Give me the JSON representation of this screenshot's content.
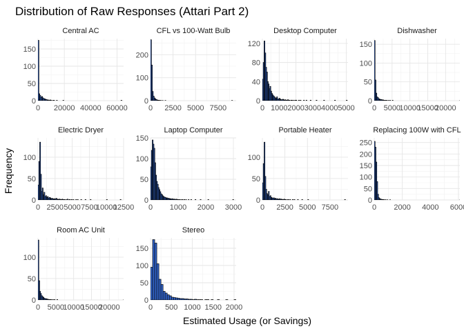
{
  "chart_data": {
    "type": "histogram",
    "title": "Distribution of Raw Responses (Attari Part 2)",
    "xlabel": "Estimated Usage (or Savings)",
    "ylabel": "Frequency",
    "grid": true,
    "bar_fill": "#3366cc",
    "bar_outline": "#000000",
    "panels": [
      {
        "name": "Central AC",
        "xlim": [
          0,
          65000
        ],
        "ylim": [
          0,
          180
        ],
        "x_ticks": [
          0,
          20000,
          40000,
          60000
        ],
        "x_tick_labels": [
          "0",
          "20000",
          "40000",
          "60000"
        ],
        "y_ticks": [
          0,
          50,
          100,
          150
        ],
        "bin_width": 700,
        "counts": [
          175,
          20,
          15,
          10,
          12,
          8,
          6,
          5,
          4,
          3,
          2,
          2,
          1,
          2,
          1,
          0,
          1,
          1,
          0,
          0,
          1,
          0,
          0,
          0,
          0,
          0,
          0,
          1,
          0,
          0,
          0,
          0,
          0,
          0,
          0,
          0,
          0,
          0,
          0,
          0,
          0,
          0,
          0,
          0,
          0,
          0,
          0,
          0,
          0,
          0,
          0,
          0,
          0,
          0,
          0,
          0,
          0,
          0,
          0,
          0,
          0,
          0,
          0,
          0,
          0,
          0,
          0,
          0,
          0,
          0,
          0,
          0,
          0,
          0,
          0,
          0,
          0,
          0,
          0,
          0,
          0,
          0,
          0,
          0,
          0,
          0,
          0,
          0,
          0,
          0,
          1
        ]
      },
      {
        "name": "CFL vs 100-Watt Bulb",
        "xlim": [
          0,
          9500
        ],
        "ylim": [
          0,
          270
        ],
        "x_ticks": [
          0,
          2500,
          5000,
          7500
        ],
        "x_tick_labels": [
          "0",
          "2500",
          "5000",
          "7500"
        ],
        "y_ticks": [
          0,
          100,
          200
        ],
        "bin_width": 100,
        "counts": [
          265,
          155,
          40,
          20,
          12,
          8,
          5,
          3,
          2,
          2,
          1,
          1,
          0,
          1,
          0,
          0,
          1,
          0,
          0,
          0,
          0,
          0,
          0,
          0,
          0,
          0,
          0,
          0,
          0,
          0,
          0,
          0,
          0,
          0,
          0,
          0,
          0,
          0,
          0,
          0,
          0,
          0,
          0,
          0,
          0,
          0,
          0,
          0,
          0,
          0,
          0,
          0,
          0,
          0,
          0,
          0,
          0,
          0,
          0,
          0,
          0,
          0,
          0,
          0,
          0,
          0,
          0,
          0,
          0,
          0,
          0,
          0,
          0,
          0,
          0,
          0,
          0,
          0,
          0,
          0,
          0,
          0,
          0,
          0,
          0,
          0,
          0,
          0,
          0,
          0,
          1
        ]
      },
      {
        "name": "Desktop Computer",
        "xlim": [
          0,
          5100
        ],
        "ylim": [
          0,
          130
        ],
        "x_ticks": [
          0,
          1000,
          2000,
          3000,
          4000,
          5000
        ],
        "x_tick_labels": [
          "0",
          "1000",
          "2000",
          "3000",
          "4000",
          "5000"
        ],
        "y_ticks": [
          0,
          40,
          80,
          120
        ],
        "bin_width": 50,
        "counts": [
          45,
          80,
          125,
          100,
          70,
          60,
          40,
          35,
          25,
          30,
          20,
          15,
          12,
          10,
          8,
          6,
          5,
          8,
          4,
          3,
          5,
          3,
          2,
          2,
          3,
          2,
          1,
          2,
          1,
          1,
          2,
          1,
          1,
          0,
          1,
          1,
          0,
          1,
          0,
          1,
          1,
          0,
          0,
          1,
          0,
          1,
          0,
          0,
          0,
          1,
          0,
          0,
          1,
          0,
          0,
          0,
          0,
          1,
          0,
          0,
          0,
          0,
          0,
          0,
          1,
          0,
          0,
          0,
          0,
          0,
          0,
          0,
          0,
          1,
          0,
          0,
          0,
          0,
          0,
          0,
          0,
          0,
          0,
          0,
          0,
          0,
          1,
          0,
          0,
          0,
          0,
          0,
          0,
          0,
          0,
          0,
          0,
          0,
          0,
          0,
          1
        ]
      },
      {
        "name": "Dishwasher",
        "xlim": [
          0,
          24000
        ],
        "ylim": [
          0,
          165
        ],
        "x_ticks": [
          0,
          5000,
          10000,
          15000,
          20000
        ],
        "x_tick_labels": [
          "0",
          "5000",
          "10000",
          "15000",
          "20000"
        ],
        "y_ticks": [
          0,
          50,
          100,
          150
        ],
        "bin_width": 240,
        "counts": [
          160,
          55,
          20,
          10,
          8,
          5,
          4,
          3,
          3,
          2,
          2,
          1,
          1,
          1,
          1,
          0,
          1,
          0,
          1,
          0,
          0,
          1,
          0,
          0,
          0,
          0,
          0,
          0,
          0,
          0,
          0,
          0,
          0,
          0,
          0,
          0,
          0,
          0,
          0,
          0,
          0,
          0,
          0,
          0,
          0,
          0,
          0,
          0,
          0,
          0,
          0,
          0,
          0,
          0,
          0,
          0,
          0,
          0,
          0,
          0,
          0,
          0,
          0,
          0,
          0,
          0,
          0,
          0,
          0,
          0,
          0,
          0,
          0,
          0,
          0,
          0,
          0,
          0,
          0,
          0,
          0,
          0,
          0,
          0,
          0,
          0,
          0,
          0,
          0,
          0,
          0,
          0,
          0,
          0,
          0,
          0,
          0,
          0,
          0,
          0,
          1
        ]
      },
      {
        "name": "Electric Dryer",
        "xlim": [
          0,
          12500
        ],
        "ylim": [
          0,
          145
        ],
        "x_ticks": [
          0,
          2500,
          5000,
          7500,
          10000,
          12500
        ],
        "x_tick_labels": [
          "0",
          "2500",
          "5000",
          "7500",
          "10000",
          "12500"
        ],
        "y_ticks": [
          0,
          50,
          100
        ],
        "bin_width": 125,
        "counts": [
          35,
          90,
          135,
          60,
          20,
          28,
          12,
          18,
          8,
          10,
          6,
          8,
          4,
          6,
          5,
          3,
          4,
          3,
          2,
          3,
          2,
          4,
          2,
          1,
          2,
          2,
          1,
          1,
          2,
          1,
          1,
          1,
          0,
          1,
          2,
          0,
          1,
          1,
          0,
          1,
          0,
          1,
          0,
          0,
          1,
          0,
          1,
          0,
          0,
          0,
          1,
          0,
          0,
          0,
          0,
          1,
          0,
          0,
          0,
          0,
          0,
          1,
          0,
          0,
          0,
          0,
          0,
          0,
          0,
          0,
          0,
          0,
          0,
          0,
          0,
          0,
          0,
          0,
          0,
          0,
          1,
          0,
          0,
          0,
          0,
          0,
          0,
          0,
          0,
          0,
          0,
          0,
          0,
          0,
          0,
          0,
          1
        ]
      },
      {
        "name": "Laptop Computer",
        "xlim": [
          0,
          3100
        ],
        "ylim": [
          0,
          150
        ],
        "x_ticks": [
          0,
          1000,
          2000,
          3000
        ],
        "x_tick_labels": [
          "0",
          "1000",
          "2000",
          "3000"
        ],
        "y_ticks": [
          0,
          50,
          100,
          150
        ],
        "bin_width": 31,
        "counts": [
          80,
          120,
          145,
          135,
          125,
          90,
          60,
          45,
          38,
          30,
          25,
          20,
          15,
          13,
          10,
          8,
          7,
          6,
          5,
          5,
          4,
          4,
          3,
          3,
          2,
          3,
          2,
          2,
          2,
          1,
          2,
          1,
          1,
          1,
          1,
          0,
          1,
          1,
          0,
          1,
          0,
          1,
          0,
          0,
          1,
          0,
          0,
          1,
          0,
          0,
          0,
          0,
          1,
          0,
          0,
          0,
          0,
          0,
          1,
          0,
          0,
          0,
          0,
          0,
          0,
          0,
          0,
          1,
          0,
          0,
          0,
          0,
          0,
          0,
          0,
          0,
          0,
          0,
          0,
          0,
          0,
          0,
          0,
          0,
          0,
          0,
          0,
          0,
          0,
          0,
          0,
          0,
          0,
          0,
          0,
          0,
          1
        ]
      },
      {
        "name": "Portable Heater",
        "xlim": [
          0,
          9500
        ],
        "ylim": [
          0,
          145
        ],
        "x_ticks": [
          0,
          2500,
          5000,
          7500
        ],
        "x_tick_labels": [
          "0",
          "2500",
          "5000",
          "7500"
        ],
        "y_ticks": [
          0,
          50,
          100
        ],
        "bin_width": 95,
        "counts": [
          40,
          85,
          135,
          55,
          25,
          15,
          12,
          20,
          8,
          10,
          6,
          5,
          4,
          5,
          3,
          4,
          2,
          3,
          2,
          2,
          3,
          1,
          2,
          1,
          1,
          2,
          1,
          1,
          0,
          1,
          1,
          0,
          1,
          0,
          0,
          1,
          0,
          1,
          0,
          0,
          0,
          1,
          0,
          0,
          0,
          0,
          1,
          0,
          0,
          0,
          0,
          0,
          0,
          1,
          0,
          0,
          0,
          0,
          0,
          0,
          0,
          0,
          0,
          0,
          0,
          0,
          0,
          0,
          0,
          0,
          0,
          0,
          0,
          0,
          0,
          0,
          0,
          0,
          0,
          0,
          0,
          0,
          0,
          0,
          0,
          0,
          0,
          0,
          0,
          0,
          0,
          0,
          0,
          0,
          0,
          0,
          1
        ]
      },
      {
        "name": "Replacing 100W with CFL",
        "xlim": [
          0,
          6100
        ],
        "ylim": [
          0,
          270
        ],
        "x_ticks": [
          0,
          2000,
          4000,
          6000
        ],
        "x_tick_labels": [
          "0",
          "2000",
          "4000",
          "6000"
        ],
        "y_ticks": [
          0,
          50,
          100,
          150,
          200,
          250
        ],
        "bin_width": 61,
        "counts": [
          255,
          230,
          165,
          80,
          25,
          10,
          6,
          4,
          3,
          2,
          2,
          1,
          1,
          1,
          0,
          1,
          0,
          0,
          1,
          0,
          0,
          0,
          0,
          0,
          0,
          0,
          0,
          0,
          0,
          0,
          0,
          0,
          0,
          0,
          0,
          0,
          0,
          0,
          0,
          0,
          0,
          0,
          0,
          0,
          0,
          0,
          0,
          0,
          0,
          0,
          0,
          0,
          0,
          0,
          0,
          0,
          0,
          0,
          0,
          0,
          0,
          0,
          0,
          0,
          0,
          0,
          0,
          0,
          0,
          0,
          0,
          0,
          0,
          0,
          0,
          0,
          0,
          0,
          0,
          0,
          0,
          0,
          0,
          0,
          0,
          0,
          0,
          0,
          0,
          0,
          0,
          0,
          0,
          0,
          0,
          0,
          0,
          0,
          0,
          0,
          1
        ]
      },
      {
        "name": "Room AC Unit",
        "xlim": [
          0,
          24000
        ],
        "ylim": [
          0,
          145
        ],
        "x_ticks": [
          0,
          5000,
          10000,
          15000,
          20000
        ],
        "x_tick_labels": [
          "0",
          "5000",
          "10000",
          "15000",
          "20000"
        ],
        "y_ticks": [
          0,
          50,
          100
        ],
        "bin_width": 240,
        "counts": [
          140,
          45,
          20,
          15,
          10,
          8,
          6,
          4,
          3,
          3,
          2,
          2,
          1,
          1,
          1,
          1,
          0,
          1,
          0,
          1,
          0,
          0,
          1,
          0,
          0,
          0,
          0,
          0,
          0,
          0,
          0,
          0,
          0,
          0,
          0,
          0,
          0,
          0,
          0,
          0,
          0,
          0,
          0,
          0,
          0,
          0,
          0,
          0,
          0,
          0,
          0,
          0,
          0,
          0,
          0,
          0,
          0,
          0,
          0,
          0,
          0,
          0,
          0,
          0,
          0,
          0,
          0,
          0,
          0,
          0,
          0,
          0,
          0,
          0,
          0,
          0,
          0,
          0,
          0,
          0,
          0,
          0,
          0,
          0,
          0,
          0,
          0,
          0,
          0,
          0,
          0,
          0,
          0,
          0,
          0,
          0,
          0,
          0,
          0,
          0,
          1
        ]
      },
      {
        "name": "Stereo",
        "xlim": [
          0,
          2050
        ],
        "ylim": [
          0,
          180
        ],
        "x_ticks": [
          0,
          500,
          1000,
          1500,
          2000
        ],
        "x_tick_labels": [
          "0",
          "500",
          "1000",
          "1500",
          "2000"
        ],
        "y_ticks": [
          0,
          50,
          100,
          150
        ],
        "bin_width": 50,
        "counts": [
          95,
          175,
          165,
          105,
          60,
          45,
          25,
          20,
          15,
          12,
          8,
          7,
          6,
          5,
          4,
          4,
          3,
          3,
          2,
          2,
          1,
          2,
          1,
          1,
          1,
          0,
          1,
          1,
          0,
          1,
          0,
          0,
          1,
          0,
          0,
          0,
          1,
          0,
          0,
          0,
          1
        ]
      }
    ]
  }
}
